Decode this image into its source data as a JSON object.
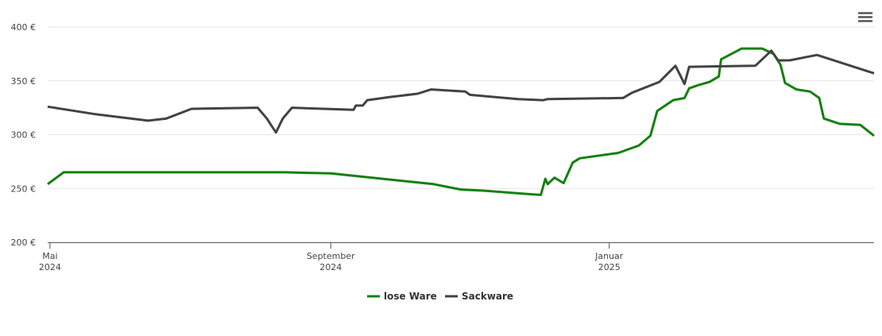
{
  "chart_data": {
    "type": "line",
    "ylim": [
      200,
      400
    ],
    "yticks": [
      {
        "value": 200,
        "label": "200 €"
      },
      {
        "value": 250,
        "label": "250 €"
      },
      {
        "value": 300,
        "label": "300 €"
      },
      {
        "value": 350,
        "label": "350 €"
      },
      {
        "value": 400,
        "label": "400 €"
      }
    ],
    "xlim": [
      "2024-04-30",
      "2025-04-27"
    ],
    "xticks": [
      {
        "value": "2024-05",
        "label": [
          "Mai",
          "2024"
        ]
      },
      {
        "value": "2024-09",
        "label": [
          "September",
          "2024"
        ]
      },
      {
        "value": "2025-01",
        "label": [
          "Januar",
          "2025"
        ]
      }
    ],
    "grid": true,
    "legend": "bottom",
    "series": [
      {
        "name": "lose Ware",
        "color": "#14800f",
        "x": [
          "2024-04-30",
          "2024-05-07",
          "2024-08-12",
          "2024-09-01",
          "2024-10-16",
          "2024-10-28",
          "2024-11-07",
          "2024-11-25",
          "2024-12-02",
          "2024-12-04",
          "2024-12-05",
          "2024-12-08",
          "2024-12-12",
          "2024-12-16",
          "2024-12-19",
          "2025-01-05",
          "2025-01-14",
          "2025-01-19",
          "2025-01-22",
          "2025-01-29",
          "2025-02-03",
          "2025-02-05",
          "2025-02-09",
          "2025-02-14",
          "2025-02-18",
          "2025-02-19",
          "2025-02-28",
          "2025-03-09",
          "2025-03-14",
          "2025-03-17",
          "2025-03-19",
          "2025-03-24",
          "2025-03-30",
          "2025-04-03",
          "2025-04-05",
          "2025-04-12",
          "2025-04-21",
          "2025-04-27"
        ],
        "values": [
          254,
          265,
          265,
          264,
          254,
          249,
          248,
          245,
          244,
          259,
          254,
          260,
          255,
          274,
          278,
          283,
          290,
          299,
          322,
          332,
          334,
          343,
          346,
          349,
          354,
          370,
          380,
          380,
          375,
          365,
          348,
          342,
          340,
          334,
          315,
          310,
          309,
          299
        ]
      },
      {
        "name": "Sackware",
        "color": "#434343",
        "x": [
          "2024-04-30",
          "2024-05-21",
          "2024-06-13",
          "2024-06-21",
          "2024-07-02",
          "2024-07-31",
          "2024-08-04",
          "2024-08-08",
          "2024-08-11",
          "2024-08-15",
          "2024-09-11",
          "2024-09-12",
          "2024-09-15",
          "2024-09-17",
          "2024-09-27",
          "2024-10-09",
          "2024-10-15",
          "2024-10-30",
          "2024-11-01",
          "2024-11-22",
          "2024-12-03",
          "2024-12-05",
          "2025-01-06",
          "2025-01-07",
          "2025-01-11",
          "2025-01-23",
          "2025-01-30",
          "2025-02-03",
          "2025-02-05",
          "2025-03-06",
          "2025-03-13",
          "2025-03-16",
          "2025-03-21",
          "2025-04-02",
          "2025-04-27"
        ],
        "values": [
          326,
          319,
          313,
          315,
          324,
          325,
          315,
          302,
          315,
          325,
          323,
          327,
          327,
          332,
          335,
          338,
          342,
          340,
          337,
          333,
          332,
          333,
          334,
          334,
          339,
          349,
          364,
          347,
          363,
          364,
          378,
          369,
          369,
          374,
          357
        ]
      }
    ]
  }
}
